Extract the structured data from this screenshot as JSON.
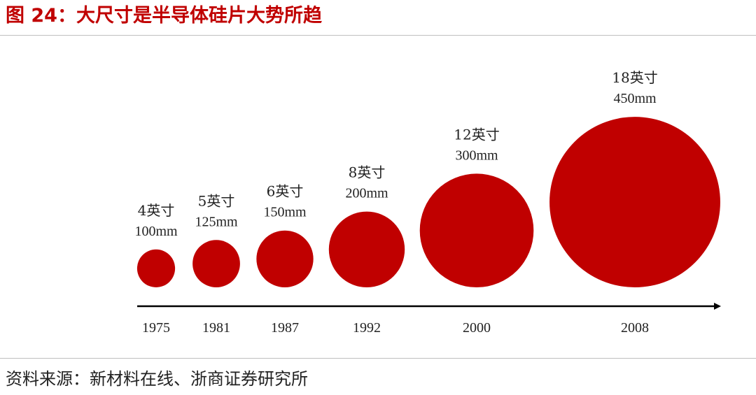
{
  "figure": {
    "title": "图 24：大尺寸是半导体硅片大势所趋",
    "source": "资料来源：新材料在线、浙商证券研究所"
  },
  "colors": {
    "accent": "#c00000",
    "wafer": "#c00000",
    "axis": "#000000",
    "text": "#222222",
    "rule": "#bfbfbf"
  },
  "chart_data": {
    "type": "scatter",
    "title": "",
    "xlabel": "",
    "ylabel": "",
    "grid": false,
    "legend": "none",
    "categories": [
      "1975",
      "1981",
      "1987",
      "1992",
      "2000",
      "2008"
    ],
    "points": [
      {
        "year": "1975",
        "inch_label": "4英寸",
        "size_label": "100mm",
        "diameter_mm": 100
      },
      {
        "year": "1981",
        "inch_label": "5英寸",
        "size_label": "125mm",
        "diameter_mm": 125
      },
      {
        "year": "1987",
        "inch_label": "6英寸",
        "size_label": "150mm",
        "diameter_mm": 150
      },
      {
        "year": "1992",
        "inch_label": "8英寸",
        "size_label": "200mm",
        "diameter_mm": 200
      },
      {
        "year": "2000",
        "inch_label": "12英寸",
        "size_label": "300mm",
        "diameter_mm": 300
      },
      {
        "year": "2008",
        "inch_label": "18英寸",
        "size_label": "450mm",
        "diameter_mm": 450
      }
    ]
  }
}
